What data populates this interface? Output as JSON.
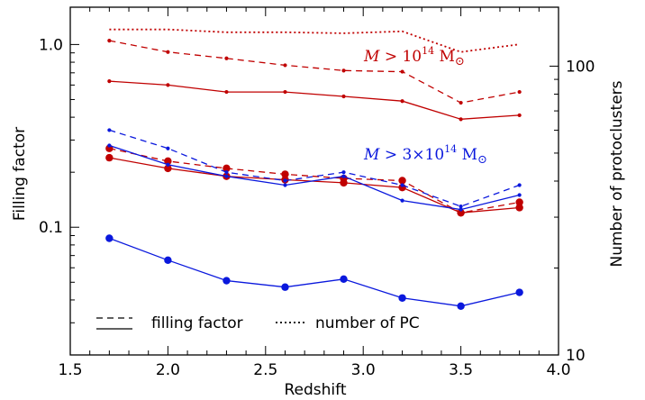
{
  "chart_data": {
    "type": "line",
    "xlabel": "Redshift",
    "ylabel_left": "Filling factor",
    "ylabel_right": "Number of protoclusters",
    "xlim": [
      1.5,
      4.0
    ],
    "ylim_left": [
      0.02,
      1.6
    ],
    "ylim_right": [
      10,
      160
    ],
    "yscale_left": "log",
    "yscale_right": "log",
    "x_ticks": [
      "1.5",
      "2.0",
      "2.5",
      "3.0",
      "3.5",
      "4.0"
    ],
    "y_left_ticks": [
      "0.1",
      "1.0"
    ],
    "y_right_ticks": [
      "10",
      "100"
    ],
    "x": [
      1.7,
      2.0,
      2.3,
      2.6,
      2.9,
      3.2,
      3.5,
      3.8
    ],
    "colors": {
      "red": "#c00000",
      "blue": "#0a18dd"
    },
    "series": [
      {
        "group": "red",
        "kind": "filling_factor",
        "style": "dashed",
        "marker": "small",
        "axis": "left",
        "values": [
          1.05,
          0.91,
          0.84,
          0.77,
          0.72,
          0.71,
          0.48,
          0.55
        ]
      },
      {
        "group": "red",
        "kind": "filling_factor",
        "style": "solid",
        "marker": "small",
        "axis": "left",
        "values": [
          0.63,
          0.6,
          0.55,
          0.55,
          0.52,
          0.49,
          0.39,
          0.41
        ]
      },
      {
        "group": "red",
        "kind": "number_of_pc",
        "style": "dotted",
        "marker": "none",
        "axis": "right",
        "values": [
          134,
          134,
          131,
          131,
          130,
          132,
          112,
          119
        ]
      },
      {
        "group": "red",
        "kind": "filling_factor",
        "style": "dashed",
        "marker": "large",
        "axis": "left",
        "values": [
          0.27,
          0.23,
          0.21,
          0.195,
          0.185,
          0.18,
          0.12,
          0.137
        ]
      },
      {
        "group": "red",
        "kind": "filling_factor",
        "style": "solid",
        "marker": "large",
        "axis": "left",
        "values": [
          0.24,
          0.21,
          0.19,
          0.182,
          0.175,
          0.165,
          0.12,
          0.128
        ]
      },
      {
        "group": "blue",
        "kind": "filling_factor",
        "style": "dashed",
        "marker": "small",
        "axis": "left",
        "values": [
          0.34,
          0.27,
          0.2,
          0.18,
          0.2,
          0.17,
          0.13,
          0.17
        ]
      },
      {
        "group": "blue",
        "kind": "filling_factor",
        "style": "solid",
        "marker": "small",
        "axis": "left",
        "values": [
          0.28,
          0.22,
          0.19,
          0.17,
          0.19,
          0.14,
          0.125,
          0.15
        ]
      },
      {
        "group": "blue",
        "kind": "filling_factor",
        "style": "solid",
        "marker": "large",
        "axis": "left",
        "values": [
          0.087,
          0.066,
          0.051,
          0.047,
          0.052,
          0.041,
          0.037,
          0.044
        ]
      }
    ],
    "annotations": [
      {
        "group": "red",
        "italic": "M",
        "rest": " > 10",
        "sup": "14",
        "unit": " M",
        "sun": "⊙"
      },
      {
        "group": "blue",
        "italic": "M",
        "rest": " > 3×10",
        "sup": "14",
        "unit": " M",
        "sun": "⊙"
      }
    ],
    "legend": [
      {
        "style": "dashed+solid",
        "label": "filling factor"
      },
      {
        "style": "dotted",
        "label": "number of PC"
      }
    ]
  }
}
